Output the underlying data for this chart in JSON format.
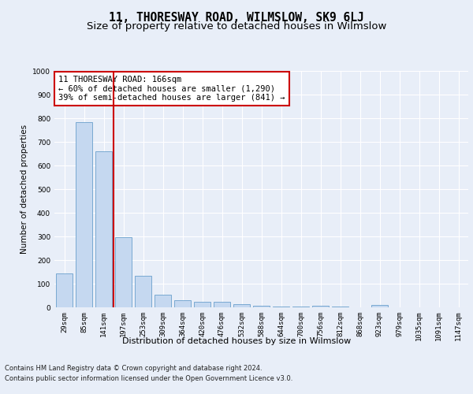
{
  "title": "11, THORESWAY ROAD, WILMSLOW, SK9 6LJ",
  "subtitle": "Size of property relative to detached houses in Wilmslow",
  "xlabel": "Distribution of detached houses by size in Wilmslow",
  "ylabel": "Number of detached properties",
  "bar_labels": [
    "29sqm",
    "85sqm",
    "141sqm",
    "197sqm",
    "253sqm",
    "309sqm",
    "364sqm",
    "420sqm",
    "476sqm",
    "532sqm",
    "588sqm",
    "644sqm",
    "700sqm",
    "756sqm",
    "812sqm",
    "868sqm",
    "923sqm",
    "979sqm",
    "1035sqm",
    "1091sqm",
    "1147sqm"
  ],
  "bar_values": [
    143,
    783,
    660,
    296,
    133,
    53,
    30,
    22,
    22,
    14,
    6,
    5,
    5,
    7,
    5,
    0,
    10,
    0,
    0,
    0,
    0
  ],
  "bar_color": "#c5d8f0",
  "bar_edge_color": "#6aa0cc",
  "background_color": "#e8eef8",
  "plot_bg_color": "#e8eef8",
  "grid_color": "#ffffff",
  "red_line_x": 2.5,
  "red_line_color": "#cc0000",
  "annotation_text": "11 THORESWAY ROAD: 166sqm\n← 60% of detached houses are smaller (1,290)\n39% of semi-detached houses are larger (841) →",
  "annotation_box_color": "#ffffff",
  "annotation_box_edge": "#cc0000",
  "ylim": [
    0,
    1000
  ],
  "yticks": [
    0,
    100,
    200,
    300,
    400,
    500,
    600,
    700,
    800,
    900,
    1000
  ],
  "footer_line1": "Contains HM Land Registry data © Crown copyright and database right 2024.",
  "footer_line2": "Contains public sector information licensed under the Open Government Licence v3.0.",
  "title_fontsize": 10.5,
  "subtitle_fontsize": 9.5,
  "ylabel_fontsize": 7.5,
  "xlabel_fontsize": 8,
  "tick_fontsize": 6.5,
  "annotation_fontsize": 7.5,
  "footer_fontsize": 6
}
